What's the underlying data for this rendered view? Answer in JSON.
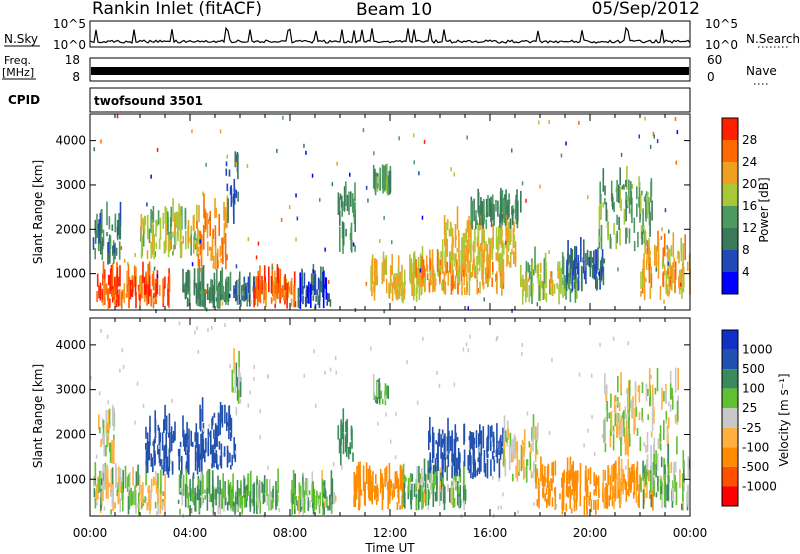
{
  "header": {
    "station": "Rankin Inlet (fitACF)",
    "beam": "Beam 10",
    "date": "05/Sep/2012"
  },
  "top_panels": {
    "nsky_label": "N.Sky",
    "nsky_ticks": [
      "10^5",
      "10^0"
    ],
    "nsearch_label": "N.Search",
    "nsearch_ticks": [
      "10^5",
      "10^0"
    ],
    "freq_label_1": "Freq.",
    "freq_label_2": "[MHz]",
    "freq_ticks": [
      "18",
      "8"
    ],
    "nave_label": "Nave",
    "nave_ticks": [
      "60",
      "0"
    ],
    "cpid_label": "CPID",
    "cpid_value": "twofsound 3501"
  },
  "colors": {
    "power_scale": [
      "#0000ff",
      "#2048b8",
      "#3a7a5a",
      "#4c9a60",
      "#a8c838",
      "#f0a020",
      "#ff6a00",
      "#ff2000"
    ],
    "velocity_scale": [
      "#ff0000",
      "#ff5000",
      "#ff8c00",
      "#ffb040",
      "#c8c8c8",
      "#60c030",
      "#3a8a5a",
      "#2050b0",
      "#1030c8"
    ]
  },
  "chart_data": [
    {
      "type": "heatmap",
      "title": "",
      "xlabel": "",
      "ylabel": "Slant Range [km]",
      "xlim": [
        "00:00",
        "24:00"
      ],
      "ylim": [
        180,
        4600
      ],
      "x_ticks": [
        "00:00",
        "04:00",
        "08:00",
        "12:00",
        "16:00",
        "20:00",
        "00:00"
      ],
      "y_ticks": [
        "1000",
        "2000",
        "3000",
        "4000"
      ],
      "y_tick_values": [
        1000,
        2000,
        3000,
        4000
      ],
      "colorbar_label": "Power [dB]",
      "colorbar_ticks": [
        "4",
        "8",
        "12",
        "16",
        "20",
        "24",
        "28"
      ],
      "colorbar_tick_values": [
        4,
        8,
        12,
        16,
        20,
        24,
        28
      ],
      "colorbar_range": [
        0,
        32
      ],
      "regions": [
        {
          "t": [
            0.2,
            3.2
          ],
          "r": [
            200,
            800
          ],
          "value": 27
        },
        {
          "t": [
            0.1,
            1.2
          ],
          "r": [
            1200,
            2100
          ],
          "value": 10
        },
        {
          "t": [
            2.0,
            4.4
          ],
          "r": [
            1300,
            2200
          ],
          "value": 18
        },
        {
          "t": [
            4.2,
            5.5
          ],
          "r": [
            1000,
            2300
          ],
          "value": 24
        },
        {
          "t": [
            5.4,
            5.9
          ],
          "r": [
            2100,
            3500
          ],
          "value": 8
        },
        {
          "t": [
            3.6,
            5.6
          ],
          "r": [
            200,
            700
          ],
          "value": 12
        },
        {
          "t": [
            5.7,
            6.6
          ],
          "r": [
            250,
            650
          ],
          "value": 9
        },
        {
          "t": [
            6.5,
            8.2
          ],
          "r": [
            200,
            700
          ],
          "value": 26
        },
        {
          "t": [
            8.3,
            9.6
          ],
          "r": [
            200,
            700
          ],
          "value": 6
        },
        {
          "t": [
            9.9,
            10.6
          ],
          "r": [
            1300,
            2700
          ],
          "value": 12
        },
        {
          "t": [
            11.3,
            12.0
          ],
          "r": [
            2750,
            2950
          ],
          "value": 14
        },
        {
          "t": [
            11.2,
            13.2
          ],
          "r": [
            300,
            1000
          ],
          "value": 20
        },
        {
          "t": [
            13.0,
            16.6
          ],
          "r": [
            500,
            1100
          ],
          "value": 22
        },
        {
          "t": [
            14.0,
            17.0
          ],
          "r": [
            1100,
            2000
          ],
          "value": 20
        },
        {
          "t": [
            15.2,
            17.2
          ],
          "r": [
            2000,
            2400
          ],
          "value": 12
        },
        {
          "t": [
            17.2,
            19.5
          ],
          "r": [
            300,
            1100
          ],
          "value": 17
        },
        {
          "t": [
            19.0,
            20.6
          ],
          "r": [
            600,
            1300
          ],
          "value": 8
        },
        {
          "t": [
            20.3,
            22.5
          ],
          "r": [
            1500,
            3000
          ],
          "value": 14
        },
        {
          "t": [
            22.0,
            24.0
          ],
          "r": [
            400,
            1500
          ],
          "value": 22
        }
      ]
    },
    {
      "type": "heatmap",
      "title": "",
      "xlabel": "Time UT",
      "ylabel": "Slant Range [km]",
      "xlim": [
        "00:00",
        "24:00"
      ],
      "ylim": [
        180,
        4600
      ],
      "x_ticks": [
        "00:00",
        "04:00",
        "08:00",
        "12:00",
        "16:00",
        "20:00",
        "00:00"
      ],
      "y_ticks": [
        "1000",
        "2000",
        "3000",
        "4000"
      ],
      "y_tick_values": [
        1000,
        2000,
        3000,
        4000
      ],
      "colorbar_label": "Velocity [m s⁻¹]",
      "colorbar_ticks": [
        "1000",
        "500",
        "100",
        "25",
        "-25",
        "-100",
        "-500",
        "-1000"
      ],
      "regions": [
        {
          "t": [
            0.1,
            3.0
          ],
          "r": [
            200,
            900
          ],
          "value": 15
        },
        {
          "t": [
            0.3,
            1.0
          ],
          "r": [
            1300,
            2200
          ],
          "value": 5
        },
        {
          "t": [
            2.2,
            4.5
          ],
          "r": [
            1000,
            2100
          ],
          "value": 900
        },
        {
          "t": [
            4.3,
            5.8
          ],
          "r": [
            1200,
            2400
          ],
          "value": 600
        },
        {
          "t": [
            5.6,
            6.0
          ],
          "r": [
            2400,
            3400
          ],
          "value": 60
        },
        {
          "t": [
            3.5,
            7.5
          ],
          "r": [
            200,
            700
          ],
          "value": 80
        },
        {
          "t": [
            8.0,
            9.8
          ],
          "r": [
            200,
            700
          ],
          "value": 50
        },
        {
          "t": [
            9.9,
            10.5
          ],
          "r": [
            1300,
            2100
          ],
          "value": 300
        },
        {
          "t": [
            10.5,
            12.5
          ],
          "r": [
            300,
            900
          ],
          "value": -200
        },
        {
          "t": [
            11.3,
            11.9
          ],
          "r": [
            2650,
            2850
          ],
          "value": 80
        },
        {
          "t": [
            12.5,
            15.0
          ],
          "r": [
            300,
            1000
          ],
          "value": 60
        },
        {
          "t": [
            13.5,
            16.5
          ],
          "r": [
            1000,
            1900
          ],
          "value": 700
        },
        {
          "t": [
            16.5,
            17.9
          ],
          "r": [
            900,
            2000
          ],
          "value": 0
        },
        {
          "t": [
            17.8,
            20.5
          ],
          "r": [
            200,
            1100
          ],
          "value": -300
        },
        {
          "t": [
            20.5,
            22.5
          ],
          "r": [
            300,
            1000
          ],
          "value": -150
        },
        {
          "t": [
            20.5,
            23.5
          ],
          "r": [
            1500,
            3000
          ],
          "value": 0
        },
        {
          "t": [
            22.0,
            24.0
          ],
          "r": [
            300,
            1300
          ],
          "value": 60
        }
      ]
    }
  ]
}
